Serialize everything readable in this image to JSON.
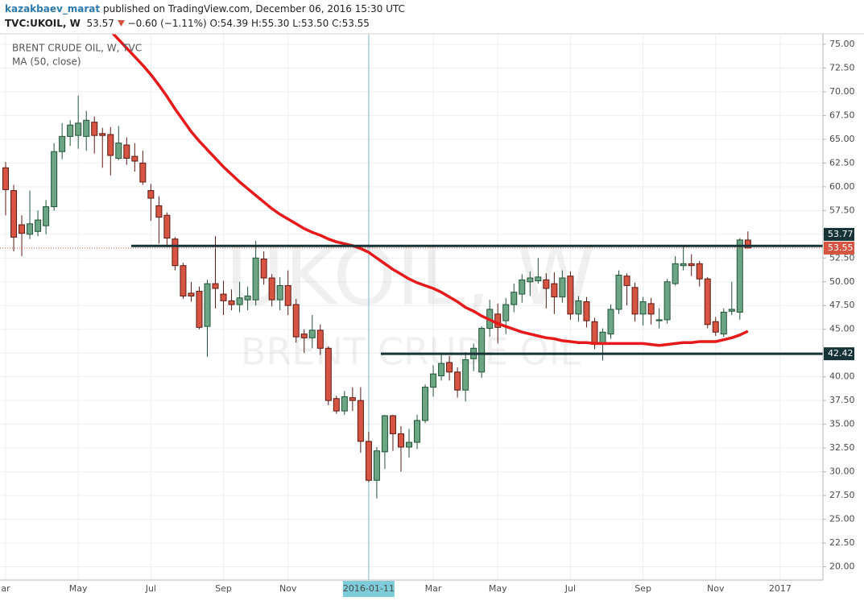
{
  "header": {
    "author": "kazakbaev_marat",
    "published": "published on TradingView.com, December 06, 2016 15:30 UTC",
    "symbol": "TVC:UKOIL, W",
    "last": "53.57",
    "change": "−0.60 (−1.11%)",
    "open": "O:54.39",
    "high": "H:55.30",
    "low": "L:53.50",
    "close": "C:53.55"
  },
  "watermark": {
    "symbol": "UKOIL, W",
    "description": "BRENT CRUDE OIL"
  },
  "chart_data": {
    "type": "candlestick",
    "title": "BRENT CRUDE OIL, W, TVC",
    "categories": [
      "ar",
      null,
      null,
      null,
      null,
      null,
      null,
      null,
      null,
      "May",
      null,
      null,
      null,
      null,
      null,
      null,
      null,
      null,
      "Jul",
      null,
      null,
      null,
      null,
      null,
      null,
      null,
      null,
      "Sep",
      null,
      null,
      null,
      null,
      null,
      null,
      null,
      "Nov",
      null,
      null,
      null,
      null,
      null,
      null,
      null,
      null,
      null,
      "2016-01-11",
      null,
      null,
      null,
      null,
      null,
      null,
      null,
      "Mar",
      null,
      null,
      null,
      null,
      null,
      null,
      null,
      "May",
      null,
      null,
      null,
      null,
      null,
      null,
      null,
      null,
      "Jul",
      null,
      null,
      null,
      null,
      null,
      null,
      null,
      null,
      "Sep",
      null,
      null,
      null,
      null,
      null,
      null,
      null,
      null,
      "Nov",
      null,
      null,
      null,
      null,
      null,
      null,
      null,
      "2017"
    ],
    "open": [
      62.0,
      59.6,
      56.0,
      55.0,
      55.3,
      55.9,
      57.9,
      63.7,
      65.3,
      65.4,
      65.3,
      66.8,
      65.6,
      65.5,
      63.0,
      64.4,
      63.2,
      62.5,
      59.6,
      58.0,
      57.0,
      54.5,
      51.7,
      48.8,
      49.0,
      45.3,
      49.8,
      48.7,
      48.0,
      47.6,
      48.1,
      48.1,
      52.4,
      50.4,
      48.1,
      49.6,
      47.6,
      44.5,
      44.1,
      44.9,
      43.0,
      37.7,
      36.4,
      37.8,
      37.5,
      33.2,
      29.1,
      32.1,
      35.9,
      34.0,
      32.6,
      33.1,
      35.4,
      38.9,
      40.1,
      41.5,
      40.5,
      38.6,
      41.9,
      40.5,
      45.1,
      46.6,
      45.9,
      47.6,
      48.7,
      50.0,
      50.1,
      50.2,
      49.8,
      48.4,
      50.6,
      46.6,
      47.9,
      45.8,
      43.4,
      44.5,
      47.1,
      50.6,
      49.4,
      46.6,
      47.7,
      45.9,
      46.0,
      49.8,
      51.7,
      51.9,
      51.9,
      50.3,
      45.8,
      44.5,
      46.9,
      46.8,
      54.39,
      null,
      null,
      null,
      null
    ],
    "high": [
      62.6,
      60.2,
      57.0,
      59.6,
      57.5,
      58.6,
      64.6,
      66.7,
      67.0,
      69.6,
      68.0,
      67.4,
      66.2,
      66.3,
      66.4,
      65.2,
      64.6,
      63.8,
      60.3,
      59.0,
      57.3,
      54.7,
      52.0,
      50.0,
      49.5,
      50.2,
      54.8,
      50.1,
      49.2,
      50.0,
      49.5,
      54.3,
      53.2,
      50.8,
      50.5,
      51.2,
      48.2,
      45.0,
      46.5,
      45.5,
      43.2,
      38.0,
      38.5,
      38.9,
      38.9,
      34.2,
      32.6,
      36.0,
      36.0,
      34.8,
      34.5,
      36.0,
      39.2,
      41.2,
      42.5,
      42.2,
      41.0,
      42.6,
      43.5,
      45.3,
      48.1,
      47.7,
      48.3,
      49.8,
      50.8,
      51.1,
      52.5,
      50.9,
      51.0,
      51.2,
      51.1,
      48.5,
      48.4,
      46.2,
      45.1,
      47.6,
      51.2,
      50.9,
      49.9,
      48.4,
      48.3,
      47.2,
      50.3,
      52.7,
      53.7,
      52.9,
      52.2,
      50.5,
      46.3,
      47.2,
      50.0,
      54.6,
      55.3,
      null,
      null,
      null,
      null
    ],
    "low": [
      57.0,
      53.2,
      52.7,
      54.5,
      54.8,
      55.0,
      57.5,
      62.9,
      64.3,
      64.0,
      63.8,
      63.5,
      62.0,
      61.2,
      62.8,
      62.3,
      61.6,
      60.2,
      56.4,
      54.0,
      53.8,
      51.2,
      48.2,
      47.9,
      45.0,
      42.1,
      47.2,
      46.5,
      47.0,
      46.8,
      47.0,
      47.5,
      49.7,
      47.4,
      47.0,
      46.5,
      43.6,
      42.5,
      43.0,
      42.3,
      37.0,
      36.1,
      36.0,
      36.4,
      32.0,
      28.9,
      27.2,
      30.3,
      32.2,
      30.0,
      31.5,
      32.4,
      35.1,
      37.9,
      39.6,
      39.6,
      37.8,
      37.4,
      40.6,
      39.9,
      44.2,
      43.5,
      44.5,
      46.8,
      47.8,
      48.5,
      49.8,
      47.2,
      46.6,
      47.8,
      46.0,
      45.8,
      45.2,
      42.9,
      41.7,
      44.0,
      46.6,
      47.5,
      45.8,
      45.4,
      45.5,
      45.1,
      45.6,
      49.6,
      51.2,
      50.6,
      49.5,
      45.1,
      44.3,
      44.2,
      46.5,
      46.0,
      53.5,
      null,
      null,
      null,
      null
    ],
    "close": [
      59.7,
      54.7,
      55.1,
      56.1,
      56.5,
      57.9,
      63.7,
      65.3,
      66.5,
      66.7,
      67.0,
      65.4,
      65.4,
      63.3,
      64.6,
      63.0,
      62.7,
      60.5,
      58.8,
      56.8,
      54.6,
      51.7,
      48.5,
      48.5,
      45.2,
      49.8,
      49.3,
      48.0,
      47.6,
      48.3,
      48.5,
      52.5,
      50.4,
      48.1,
      49.6,
      47.5,
      44.2,
      44.1,
      44.9,
      43.0,
      37.5,
      36.4,
      37.9,
      37.5,
      33.2,
      29.1,
      32.2,
      35.9,
      34.0,
      32.6,
      33.1,
      35.4,
      38.9,
      40.3,
      41.4,
      40.5,
      38.6,
      41.8,
      43.0,
      45.1,
      47.1,
      45.2,
      47.6,
      48.9,
      50.2,
      50.4,
      50.5,
      49.3,
      48.4,
      50.4,
      46.6,
      48.0,
      45.9,
      43.4,
      44.7,
      47.1,
      50.7,
      49.6,
      46.6,
      47.9,
      46.6,
      46.0,
      50.0,
      51.9,
      51.9,
      51.7,
      50.3,
      45.5,
      44.7,
      46.8,
      47.1,
      54.4,
      53.55,
      null,
      null,
      null,
      null
    ],
    "up_color": "#6ba583",
    "down_color": "#d75442",
    "ma": {
      "name": "MA (50, close)",
      "color": "#e8191b",
      "values": [
        null,
        null,
        null,
        null,
        null,
        null,
        null,
        null,
        null,
        null,
        null,
        null,
        null,
        76.4,
        75.5,
        74.6,
        73.7,
        72.8,
        71.8,
        70.7,
        69.5,
        68.2,
        67.0,
        65.8,
        64.8,
        63.9,
        63.0,
        62.1,
        61.3,
        60.5,
        59.8,
        59.1,
        58.4,
        57.7,
        57.1,
        56.6,
        56.1,
        55.6,
        55.2,
        54.9,
        54.5,
        54.2,
        54.0,
        53.8,
        53.5,
        53.1,
        52.5,
        51.9,
        51.3,
        50.8,
        50.3,
        49.9,
        49.6,
        49.3,
        48.9,
        48.4,
        47.9,
        47.3,
        46.9,
        46.4,
        46.0,
        45.6,
        45.3,
        45.0,
        44.7,
        44.5,
        44.3,
        44.1,
        44.0,
        43.8,
        43.7,
        43.6,
        43.6,
        43.5,
        43.5,
        43.5,
        43.5,
        43.5,
        43.5,
        43.5,
        43.4,
        43.3,
        43.4,
        43.5,
        43.6,
        43.6,
        43.7,
        43.7,
        43.7,
        43.9,
        44.1,
        44.4,
        44.8,
        null,
        null,
        null,
        null
      ]
    },
    "hlines": [
      {
        "value": 53.77,
        "label": "53.77"
      },
      {
        "value": 42.42,
        "label": "42.42"
      }
    ],
    "hline_color": "#163438",
    "last_price": {
      "value": 53.55,
      "label": "53.55"
    },
    "last_price_color": "#d75442",
    "crosshair_category": 45,
    "ylim": [
      18.6,
      76.1
    ],
    "yticks": [
      {
        "value": 20,
        "label": "20.00"
      },
      {
        "value": 22.5,
        "label": "22.50"
      },
      {
        "value": 25,
        "label": "25.00"
      },
      {
        "value": 27.5,
        "label": "27.50"
      },
      {
        "value": 30,
        "label": "30.00"
      },
      {
        "value": 32.5,
        "label": "32.50"
      },
      {
        "value": 35,
        "label": "35.00"
      },
      {
        "value": 37.5,
        "label": "37.50"
      },
      {
        "value": 40,
        "label": "40.00"
      },
      {
        "value": 42.5,
        "label": "42.50"
      },
      {
        "value": 45,
        "label": "45.00"
      },
      {
        "value": 47.5,
        "label": "47.50"
      },
      {
        "value": 50,
        "label": "50.00"
      },
      {
        "value": 52.5,
        "label": "52.50"
      },
      {
        "value": 55,
        "label": "55.00"
      },
      {
        "value": 57.5,
        "label": "57.50"
      },
      {
        "value": 60,
        "label": "60.00"
      },
      {
        "value": 62.5,
        "label": "62.50"
      },
      {
        "value": 65,
        "label": "65.00"
      },
      {
        "value": 67.5,
        "label": "67.50"
      },
      {
        "value": 70,
        "label": "70.00"
      },
      {
        "value": 72.5,
        "label": "72.50"
      },
      {
        "value": 75,
        "label": "75.00"
      }
    ],
    "grid": true
  }
}
